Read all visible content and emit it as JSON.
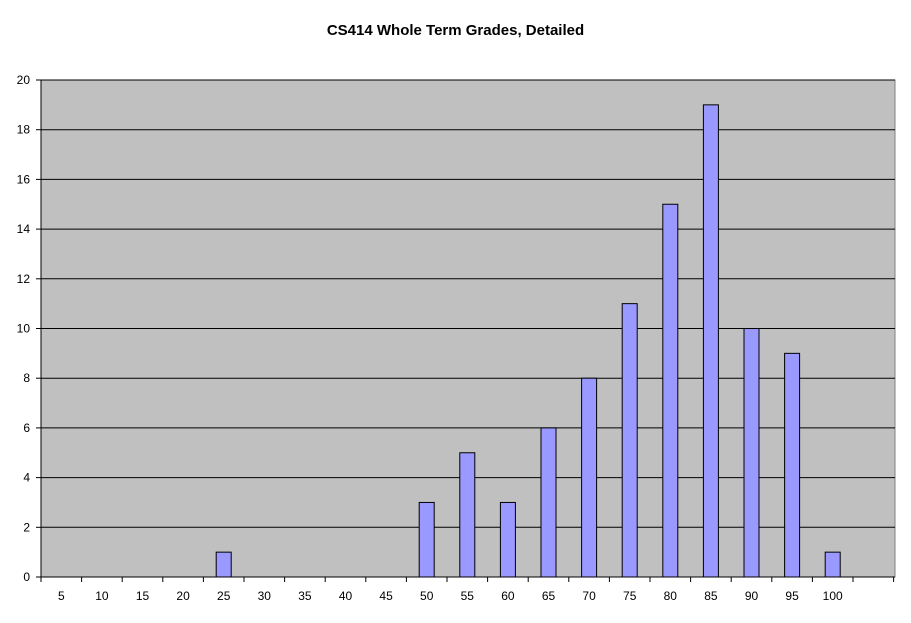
{
  "chart_data": {
    "type": "bar",
    "title": "CS414 Whole Term Grades, Detailed",
    "xlabel": "",
    "ylabel": "",
    "categories": [
      "5",
      "10",
      "15",
      "20",
      "25",
      "30",
      "35",
      "40",
      "45",
      "50",
      "55",
      "60",
      "65",
      "70",
      "75",
      "80",
      "85",
      "90",
      "95",
      "100"
    ],
    "values": [
      0,
      0,
      0,
      0,
      1,
      0,
      0,
      0,
      0,
      3,
      5,
      3,
      6,
      8,
      11,
      15,
      19,
      10,
      9,
      1
    ],
    "ylim": [
      0,
      20
    ],
    "yticks": [
      0,
      2,
      4,
      6,
      8,
      10,
      12,
      14,
      16,
      18,
      20
    ],
    "grid": true,
    "legend": "none",
    "colors": {
      "bar_fill": "#9999ff",
      "bar_stroke": "#000000",
      "plot_background": "#c0c0c0",
      "gridline": "#000000"
    }
  }
}
